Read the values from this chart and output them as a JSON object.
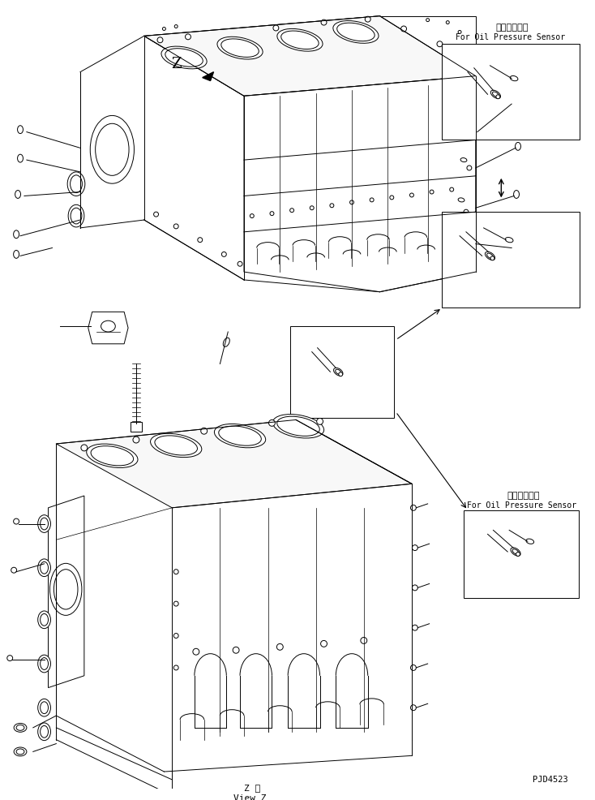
{
  "bg_color": "#ffffff",
  "line_color": "#000000",
  "fig_width": 7.34,
  "fig_height": 9.86,
  "dpi": 100,
  "title_jp1": "油圧センサ用",
  "title_en1": "For Oil Pressure Sensor",
  "title_jp2": "油圧センサ用",
  "title_en2": "For Oil Pressure Sensor",
  "view_label_jp": "Z 視",
  "view_label_en": "View Z",
  "part_num": "PJD4523",
  "z_label": "Z"
}
